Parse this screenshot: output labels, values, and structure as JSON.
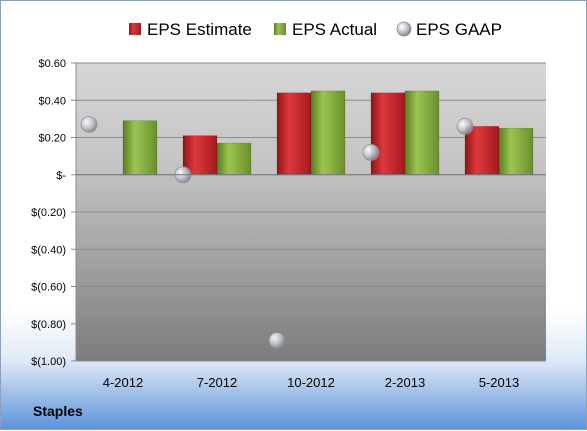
{
  "company": "Staples",
  "chart_data": {
    "type": "bar",
    "categories": [
      "4-2012",
      "7-2012",
      "10-2012",
      "2-2013",
      "5-2013"
    ],
    "series": [
      {
        "name": "EPS Estimate",
        "kind": "bar",
        "color": "#c0282d",
        "values": [
          null,
          0.21,
          0.44,
          0.44,
          0.26
        ]
      },
      {
        "name": "EPS Actual",
        "kind": "bar",
        "color": "#7fa63a",
        "values": [
          0.29,
          0.17,
          0.45,
          0.45,
          0.25
        ]
      },
      {
        "name": "EPS GAAP",
        "kind": "marker",
        "color": "#b8bcc2",
        "values": [
          0.27,
          0.0,
          -0.89,
          0.12,
          0.26
        ]
      }
    ],
    "ylim": [
      -1.0,
      0.6
    ],
    "yticks": [
      {
        "value": 0.6,
        "label": "$0.60"
      },
      {
        "value": 0.4,
        "label": "$0.40"
      },
      {
        "value": 0.2,
        "label": "$0.20"
      },
      {
        "value": 0.0,
        "label": "$-"
      },
      {
        "value": -0.2,
        "label": "$(0.20)"
      },
      {
        "value": -0.4,
        "label": "$(0.40)"
      },
      {
        "value": -0.6,
        "label": "$(0.60)"
      },
      {
        "value": -0.8,
        "label": "$(0.80)"
      },
      {
        "value": -1.0,
        "label": "$(1.00)"
      }
    ],
    "grid": true,
    "legend_position": "top"
  }
}
